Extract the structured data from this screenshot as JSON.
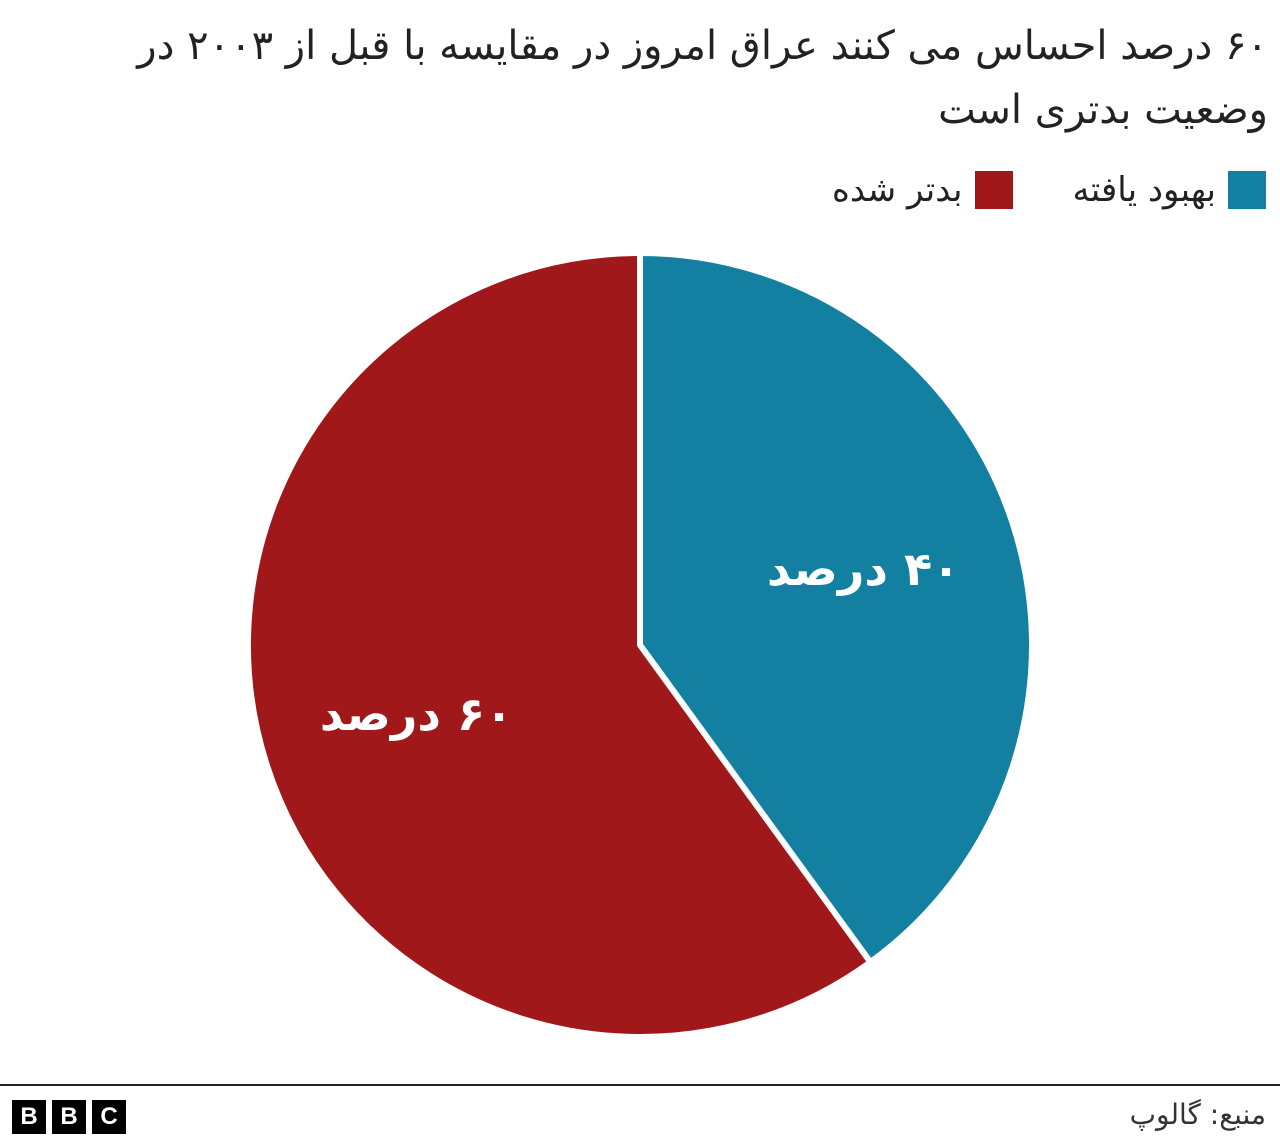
{
  "chart_data": {
    "type": "pie",
    "title": "۶۰ درصد احساس می کنند عراق امروز در مقایسه با قبل از ۲۰۰۳ در وضعیت بدتری است",
    "slices": [
      {
        "name": "بهبود یافته",
        "value": 40,
        "label": "۴۰ درصد",
        "color": "#1380A1"
      },
      {
        "name": "بدتر شده",
        "value": 60,
        "label": "۶۰ درصد",
        "color": "#A1181B"
      }
    ],
    "legend": {
      "position": "top-right",
      "items": [
        "بهبود یافته",
        "بدتر شده"
      ]
    }
  },
  "footer": {
    "source": "منبع: گالوپ",
    "logo": [
      "B",
      "B",
      "C"
    ]
  },
  "colors": {
    "improved": "#1380A1",
    "worse": "#A1181B",
    "text": "#222222"
  }
}
